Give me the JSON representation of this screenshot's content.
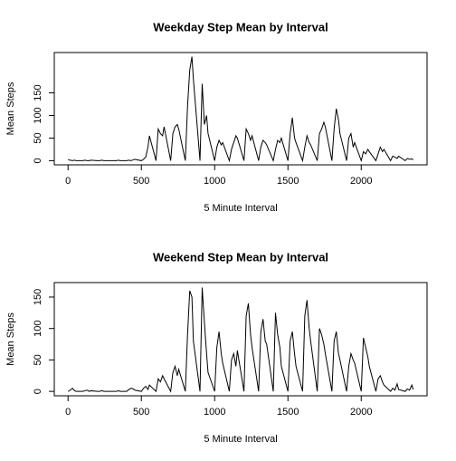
{
  "chart_data": [
    {
      "type": "line",
      "title": "Weekday Step Mean by Interval",
      "xlabel": "5 Minute Interval",
      "ylabel": "Mean Steps",
      "color": "#000000",
      "x": [
        0,
        15,
        30,
        45,
        55,
        100,
        115,
        130,
        145,
        155,
        200,
        215,
        230,
        245,
        255,
        300,
        315,
        330,
        345,
        355,
        400,
        415,
        430,
        445,
        455,
        500,
        515,
        530,
        545,
        555,
        600,
        615,
        630,
        645,
        655,
        700,
        715,
        730,
        745,
        755,
        800,
        815,
        830,
        845,
        855,
        900,
        915,
        930,
        945,
        955,
        1000,
        1015,
        1030,
        1045,
        1055,
        1100,
        1115,
        1130,
        1145,
        1155,
        1200,
        1215,
        1230,
        1245,
        1255,
        1300,
        1315,
        1330,
        1345,
        1355,
        1400,
        1415,
        1430,
        1445,
        1455,
        1500,
        1515,
        1530,
        1545,
        1555,
        1600,
        1615,
        1630,
        1645,
        1655,
        1700,
        1715,
        1730,
        1745,
        1755,
        1800,
        1815,
        1830,
        1845,
        1855,
        1900,
        1915,
        1930,
        1945,
        1955,
        2000,
        2015,
        2030,
        2045,
        2055,
        2100,
        2115,
        2130,
        2145,
        2155,
        2200,
        2215,
        2230,
        2245,
        2255,
        2300,
        2315,
        2330,
        2345,
        2355
      ],
      "values": [
        2,
        1,
        0,
        1,
        0,
        0,
        1,
        0,
        0,
        1,
        0,
        0,
        1,
        0,
        0,
        0,
        0,
        0,
        1,
        0,
        0,
        1,
        0,
        2,
        3,
        0,
        3,
        8,
        30,
        55,
        0,
        70,
        60,
        55,
        75,
        0,
        60,
        75,
        80,
        70,
        0,
        120,
        200,
        230,
        180,
        0,
        170,
        80,
        100,
        60,
        0,
        30,
        45,
        35,
        40,
        0,
        25,
        40,
        55,
        50,
        0,
        70,
        60,
        45,
        55,
        0,
        30,
        45,
        40,
        35,
        0,
        25,
        45,
        40,
        50,
        0,
        60,
        95,
        50,
        40,
        0,
        30,
        55,
        40,
        35,
        0,
        60,
        70,
        85,
        75,
        0,
        70,
        115,
        90,
        60,
        0,
        50,
        60,
        30,
        40,
        0,
        20,
        15,
        25,
        20,
        0,
        15,
        30,
        20,
        25,
        0,
        10,
        8,
        5,
        10,
        0,
        5,
        3,
        4,
        2
      ],
      "xlim": [
        -94,
        2449
      ],
      "ylim": [
        -9.2,
        239.2
      ],
      "xticks": [
        0,
        500,
        1000,
        1500,
        2000
      ],
      "yticks": [
        0,
        50,
        100,
        150
      ]
    },
    {
      "type": "line",
      "title": "Weekend Step Mean by Interval",
      "xlabel": "5 Minute Interval",
      "ylabel": "Mean Steps",
      "color": "#000000",
      "x": [
        0,
        15,
        30,
        45,
        55,
        100,
        115,
        130,
        145,
        155,
        200,
        215,
        230,
        245,
        255,
        300,
        315,
        330,
        345,
        355,
        400,
        415,
        430,
        445,
        455,
        500,
        515,
        530,
        545,
        555,
        600,
        615,
        630,
        645,
        655,
        700,
        715,
        730,
        745,
        755,
        800,
        815,
        830,
        845,
        855,
        900,
        915,
        930,
        945,
        955,
        1000,
        1015,
        1030,
        1045,
        1055,
        1100,
        1115,
        1130,
        1145,
        1155,
        1200,
        1215,
        1230,
        1245,
        1255,
        1300,
        1315,
        1330,
        1345,
        1355,
        1400,
        1415,
        1430,
        1445,
        1455,
        1500,
        1515,
        1530,
        1545,
        1555,
        1600,
        1615,
        1630,
        1645,
        1655,
        1700,
        1715,
        1730,
        1745,
        1755,
        1800,
        1815,
        1830,
        1845,
        1855,
        1900,
        1915,
        1930,
        1945,
        1955,
        2000,
        2015,
        2030,
        2045,
        2055,
        2100,
        2115,
        2130,
        2145,
        2155,
        2200,
        2215,
        2230,
        2245,
        2255,
        2300,
        2315,
        2330,
        2345,
        2355
      ],
      "values": [
        0,
        2,
        5,
        1,
        0,
        0,
        1,
        2,
        0,
        1,
        0,
        0,
        1,
        0,
        0,
        0,
        0,
        0,
        1,
        0,
        0,
        3,
        5,
        4,
        2,
        0,
        5,
        8,
        3,
        10,
        0,
        20,
        15,
        25,
        20,
        0,
        30,
        40,
        25,
        35,
        0,
        90,
        160,
        150,
        80,
        0,
        165,
        110,
        60,
        30,
        0,
        70,
        95,
        60,
        45,
        0,
        50,
        60,
        40,
        65,
        0,
        120,
        140,
        90,
        70,
        0,
        95,
        115,
        80,
        75,
        0,
        125,
        90,
        70,
        40,
        0,
        80,
        95,
        60,
        40,
        0,
        120,
        145,
        100,
        80,
        0,
        100,
        90,
        75,
        60,
        0,
        80,
        95,
        60,
        50,
        0,
        40,
        60,
        50,
        45,
        0,
        85,
        70,
        55,
        40,
        0,
        20,
        25,
        15,
        10,
        0,
        5,
        2,
        12,
        3,
        0,
        4,
        2,
        10,
        3
      ],
      "xlim": [
        -94,
        2449
      ],
      "ylim": [
        -7,
        173
      ],
      "xticks": [
        0,
        500,
        1000,
        1500,
        2000
      ],
      "yticks": [
        0,
        50,
        100,
        150
      ]
    }
  ]
}
